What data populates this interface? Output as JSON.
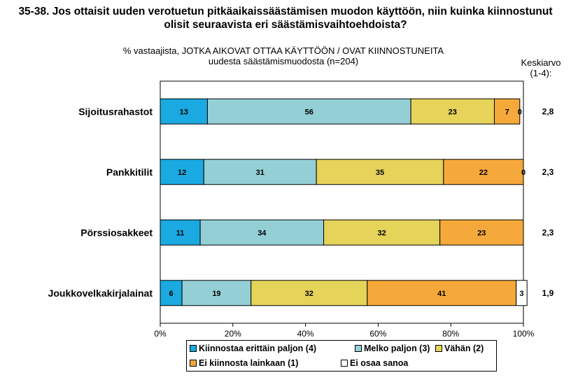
{
  "title_line1": "35-38. Jos ottaisit uuden verotuetun pitkäaikaissäästämisen muodon käyttöön, niin kuinka kiinnostunut",
  "title_line2": "olisit seuraavista eri säästämisvaihtoehdoista?",
  "subtitle_line1": "% vastaajista, JOTKA AIKOVAT OTTAA KÄYTTÖÖN / OVAT KIINNOSTUNEITA",
  "subtitle_line2": "uudesta säästämismuodosta (n=204)",
  "avg_header_line1": "Keskiarvo",
  "avg_header_line2": "(1-4):",
  "chart_data": {
    "type": "bar",
    "orientation": "horizontal",
    "stacked": true,
    "categories": [
      "Sijoitusrahastot",
      "Pankkitilit",
      "Pörssiosakkeet",
      "Joukkovelkakirjalainat"
    ],
    "series": [
      {
        "name": "Kiinnostaa erittäin paljon (4)",
        "color": "#1aa9e0",
        "values": [
          13,
          12,
          11,
          6
        ]
      },
      {
        "name": "Melko paljon (3)",
        "color": "#94cfd6",
        "values": [
          56,
          31,
          34,
          19
        ]
      },
      {
        "name": "Vähän (2)",
        "color": "#e5d35a",
        "values": [
          23,
          35,
          32,
          32
        ]
      },
      {
        "name": "Ei kiinnosta lainkaan (1)",
        "color": "#f5a93a",
        "values": [
          7,
          22,
          23,
          41
        ]
      },
      {
        "name": "Ei osaa sanoa",
        "color": "#ffffff",
        "values": [
          0,
          0,
          null,
          3
        ]
      }
    ],
    "averages": [
      "2,8",
      "2,3",
      "2,3",
      "1,9"
    ],
    "xticks": [
      "0%",
      "20%",
      "40%",
      "60%",
      "80%",
      "100%"
    ],
    "xlim": [
      0,
      100
    ],
    "legend_position": "bottom"
  }
}
